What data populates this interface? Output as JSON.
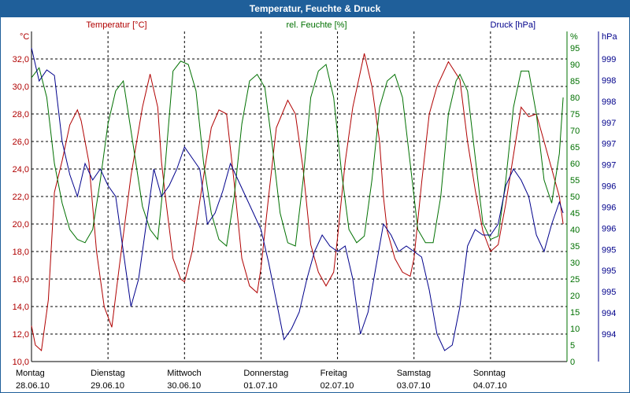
{
  "title": "Temperatur, Feuchte & Druck",
  "colors": {
    "temperature": "#b00000",
    "humidity": "#007000",
    "pressure": "#00008b",
    "titlebar": "#1f5f9a",
    "grid": "#000000"
  },
  "chart_data": {
    "type": "line",
    "title": "Temperatur, Feuchte & Druck",
    "xlabel": "",
    "x_ticks": [
      {
        "day": "Montag",
        "date": "28.06.10"
      },
      {
        "day": "Dienstag",
        "date": "29.06.10"
      },
      {
        "day": "Mittwoch",
        "date": "30.06.10"
      },
      {
        "day": "Donnerstag",
        "date": "01.07.10"
      },
      {
        "day": "Freitag",
        "date": "02.07.10"
      },
      {
        "day": "Samstag",
        "date": "03.07.10"
      },
      {
        "day": "Sonntag",
        "date": "04.07.10"
      }
    ],
    "xlim": [
      0,
      7
    ],
    "axes": {
      "temperature": {
        "label": "Temperatur [°C]",
        "unit": "°C",
        "ylim": [
          10,
          34
        ],
        "ticks": [
          "10,0",
          "12,0",
          "14,0",
          "16,0",
          "18,0",
          "20,0",
          "22,0",
          "24,0",
          "26,0",
          "28,0",
          "30,0",
          "32,0"
        ]
      },
      "humidity": {
        "label": "rel. Feuchte [%]",
        "unit": "%",
        "ylim": [
          0,
          100
        ],
        "ticks": [
          "0",
          "5",
          "10",
          "15",
          "20",
          "25",
          "30",
          "35",
          "40",
          "45",
          "50",
          "55",
          "60",
          "65",
          "70",
          "75",
          "80",
          "85",
          "90",
          "95"
        ]
      },
      "pressure": {
        "label": "Druck [hPa]",
        "unit": "hPa",
        "ylim": [
          993.5,
          999.5
        ],
        "ticks": [
          "994",
          "994",
          "995",
          "995",
          "995",
          "996",
          "996",
          "996",
          "997",
          "997",
          "997",
          "998",
          "998",
          "999"
        ]
      }
    },
    "series": [
      {
        "name": "Temperatur",
        "axis": "temperature",
        "x": [
          0.0,
          0.05,
          0.13,
          0.22,
          0.3,
          0.4,
          0.5,
          0.6,
          0.65,
          0.75,
          0.85,
          0.95,
          1.05,
          1.15,
          1.3,
          1.45,
          1.55,
          1.65,
          1.7,
          1.75,
          1.85,
          1.95,
          2.0,
          2.1,
          2.25,
          2.35,
          2.45,
          2.55,
          2.65,
          2.75,
          2.85,
          2.95,
          3.0,
          3.1,
          3.2,
          3.35,
          3.45,
          3.55,
          3.65,
          3.75,
          3.85,
          3.95,
          4.0,
          4.1,
          4.2,
          4.35,
          4.45,
          4.55,
          4.6,
          4.65,
          4.75,
          4.85,
          4.95,
          5.0,
          5.1,
          5.2,
          5.3,
          5.45,
          5.6,
          5.7,
          5.8,
          5.9,
          6.0,
          6.1,
          6.2,
          6.3,
          6.4,
          6.5,
          6.6,
          6.7,
          6.8,
          6.9,
          6.95
        ],
        "values": [
          12.6,
          11.2,
          10.8,
          14.5,
          22.3,
          24.6,
          27.2,
          28.3,
          27.5,
          24.5,
          18.0,
          14.0,
          12.5,
          17.0,
          23.5,
          28.5,
          30.9,
          28.5,
          24.5,
          22.0,
          17.5,
          16.0,
          15.8,
          18.0,
          23.5,
          27.0,
          28.3,
          28.0,
          23.0,
          17.5,
          15.5,
          15.0,
          16.8,
          22.0,
          27.0,
          29.0,
          28.0,
          24.0,
          18.5,
          16.5,
          15.5,
          16.5,
          19.0,
          24.5,
          28.5,
          32.4,
          30.0,
          26.0,
          22.0,
          19.5,
          17.5,
          16.5,
          16.2,
          17.5,
          23.0,
          28.0,
          30.0,
          31.8,
          30.5,
          26.0,
          22.5,
          19.5,
          18.0,
          18.5,
          21.5,
          25.0,
          28.5,
          27.8,
          28.0,
          26.0,
          24.0,
          22.0,
          20.0
        ]
      },
      {
        "name": "rel. Feuchte",
        "axis": "humidity",
        "x": [
          0.0,
          0.1,
          0.2,
          0.3,
          0.4,
          0.5,
          0.6,
          0.7,
          0.8,
          0.9,
          1.0,
          1.1,
          1.2,
          1.3,
          1.45,
          1.55,
          1.65,
          1.75,
          1.85,
          1.95,
          2.05,
          2.15,
          2.25,
          2.35,
          2.45,
          2.55,
          2.65,
          2.75,
          2.85,
          2.95,
          3.05,
          3.15,
          3.25,
          3.35,
          3.45,
          3.55,
          3.65,
          3.75,
          3.85,
          3.95,
          4.05,
          4.15,
          4.25,
          4.35,
          4.45,
          4.55,
          4.65,
          4.75,
          4.85,
          4.95,
          5.05,
          5.15,
          5.25,
          5.35,
          5.45,
          5.55,
          5.6,
          5.7,
          5.8,
          5.9,
          6.0,
          6.1,
          6.2,
          6.3,
          6.4,
          6.5,
          6.6,
          6.7,
          6.8,
          6.9,
          6.95
        ],
        "values": [
          86,
          89,
          80,
          60,
          48,
          40,
          37,
          36,
          40,
          55,
          72,
          82,
          85,
          70,
          47,
          40,
          37,
          60,
          88,
          91,
          90,
          82,
          60,
          45,
          37,
          35,
          50,
          72,
          85,
          87,
          83,
          65,
          45,
          36,
          35,
          55,
          80,
          88,
          90,
          80,
          58,
          40,
          36,
          38,
          55,
          77,
          85,
          87,
          80,
          60,
          40,
          36,
          36,
          50,
          75,
          85,
          87,
          82,
          62,
          42,
          37,
          38,
          55,
          77,
          88,
          88,
          75,
          55,
          48,
          63,
          80
        ]
      },
      {
        "name": "Druck",
        "axis": "pressure",
        "x": [
          0.0,
          0.1,
          0.2,
          0.3,
          0.4,
          0.5,
          0.6,
          0.7,
          0.8,
          0.9,
          1.0,
          1.1,
          1.2,
          1.3,
          1.4,
          1.5,
          1.6,
          1.7,
          1.8,
          1.9,
          2.0,
          2.1,
          2.2,
          2.3,
          2.4,
          2.5,
          2.6,
          2.7,
          2.8,
          2.9,
          3.0,
          3.1,
          3.2,
          3.3,
          3.4,
          3.5,
          3.6,
          3.7,
          3.8,
          3.9,
          4.0,
          4.1,
          4.2,
          4.3,
          4.4,
          4.5,
          4.6,
          4.7,
          4.8,
          4.9,
          5.0,
          5.1,
          5.2,
          5.3,
          5.4,
          5.5,
          5.6,
          5.7,
          5.8,
          5.9,
          6.0,
          6.1,
          6.2,
          6.3,
          6.4,
          6.5,
          6.6,
          6.7,
          6.8,
          6.9,
          6.95
        ],
        "values": [
          999.2,
          998.6,
          998.8,
          998.7,
          997.5,
          996.9,
          996.5,
          997.1,
          996.8,
          997.0,
          996.7,
          996.5,
          995.5,
          994.5,
          995.0,
          996.0,
          997.0,
          996.5,
          996.7,
          997.0,
          997.4,
          997.2,
          997.0,
          996.0,
          996.2,
          996.6,
          997.1,
          996.8,
          996.5,
          996.2,
          995.9,
          995.3,
          994.6,
          993.9,
          994.1,
          994.4,
          995.0,
          995.5,
          995.8,
          995.6,
          995.5,
          995.6,
          995.0,
          994.0,
          994.4,
          995.2,
          996.0,
          995.8,
          995.5,
          995.6,
          995.5,
          995.4,
          994.8,
          994.0,
          993.7,
          993.8,
          994.5,
          995.6,
          995.9,
          995.8,
          995.8,
          996.0,
          996.7,
          997.0,
          996.8,
          996.5,
          995.8,
          995.5,
          996.0,
          996.4,
          996.2
        ]
      }
    ]
  }
}
